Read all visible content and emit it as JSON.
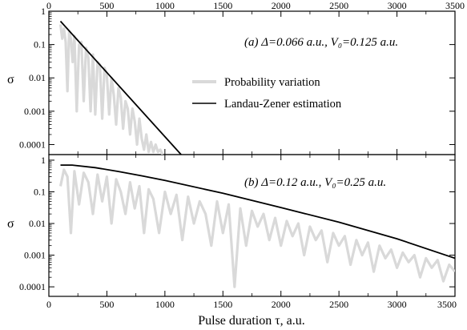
{
  "chart_data": [
    {
      "type": "line",
      "panel": "a",
      "annotation": "(a) Δ=0.066 a.u., V₀=0.125 a.u.",
      "ylabel": "σ",
      "xlabel": "",
      "xlim": [
        0,
        3500
      ],
      "ylim": [
        5e-05,
        1
      ],
      "yscale": "log",
      "x_ticks": [
        0,
        500,
        1000,
        1500,
        2000,
        2500,
        3000,
        3500
      ],
      "x_tick_labels_top": [
        "0",
        "500",
        "1000",
        "1500",
        "2000",
        "2500",
        "3000",
        "3500"
      ],
      "y_ticks": [
        0.0001,
        0.001,
        0.01,
        0.1,
        1
      ],
      "y_tick_labels": [
        "0.0001",
        "0.001",
        "0.01",
        "0.1",
        "1"
      ],
      "legend_position": "center-right",
      "series": [
        {
          "name": "Probability variation",
          "color": "#d9d9d9",
          "x": [
            100,
            115,
            130,
            145,
            160,
            175,
            190,
            205,
            220,
            240,
            260,
            280,
            300,
            320,
            340,
            360,
            380,
            400,
            420,
            440,
            460,
            480,
            500,
            520,
            540,
            560,
            580,
            600,
            620,
            640,
            660,
            680,
            700,
            720,
            740,
            760,
            780,
            800,
            820,
            840,
            860,
            880,
            900,
            920,
            940,
            960,
            980
          ],
          "y": [
            0.4,
            0.15,
            0.3,
            0.12,
            0.004,
            0.25,
            0.15,
            0.03,
            0.18,
            0.001,
            0.1,
            0.12,
            0.002,
            0.08,
            0.04,
            0.001,
            0.05,
            0.0008,
            0.03,
            0.025,
            0.0006,
            0.02,
            0.012,
            0.0008,
            0.01,
            0.003,
            0.0004,
            0.005,
            0.0025,
            0.0003,
            0.002,
            0.0012,
            0.0002,
            0.0012,
            0.0005,
            0.0001,
            0.0006,
            0.00015,
            7e-05,
            0.0002,
            6e-05,
            0.00012,
            6e-05,
            0.0001,
            6e-05,
            7e-05,
            5e-05
          ]
        },
        {
          "name": "Landau-Zener estimation",
          "color": "#000000",
          "x": [
            100,
            1140
          ],
          "y": [
            0.5,
            5e-05
          ]
        }
      ]
    },
    {
      "type": "line",
      "panel": "b",
      "annotation": "(b) Δ=0.12 a.u., V₀=0.25 a.u.",
      "ylabel": "σ",
      "xlabel": "Pulse duration τ, a.u.",
      "xlim": [
        0,
        3500
      ],
      "ylim": [
        5e-05,
        1.5
      ],
      "yscale": "log",
      "x_ticks": [
        0,
        500,
        1000,
        1500,
        2000,
        2500,
        3000,
        3500
      ],
      "x_tick_labels": [
        "0",
        "500",
        "1000",
        "1500",
        "2000",
        "2500",
        "3000",
        "3500"
      ],
      "y_ticks": [
        0.0001,
        0.001,
        0.01,
        0.1,
        1
      ],
      "y_tick_labels": [
        "0.0001",
        "0.001",
        "0.01",
        "0.1",
        "1"
      ],
      "series": [
        {
          "name": "Probability variation",
          "color": "#d9d9d9",
          "x": [
            100,
            130,
            160,
            190,
            220,
            260,
            300,
            340,
            380,
            420,
            460,
            500,
            540,
            580,
            620,
            660,
            700,
            740,
            780,
            820,
            860,
            900,
            950,
            1000,
            1050,
            1100,
            1150,
            1200,
            1250,
            1300,
            1350,
            1400,
            1450,
            1500,
            1550,
            1600,
            1650,
            1700,
            1750,
            1800,
            1850,
            1900,
            1950,
            2000,
            2050,
            2100,
            2150,
            2200,
            2250,
            2300,
            2350,
            2400,
            2450,
            2500,
            2550,
            2600,
            2650,
            2700,
            2750,
            2800,
            2850,
            2900,
            2950,
            3000,
            3050,
            3100,
            3150,
            3200,
            3250,
            3300,
            3350,
            3400,
            3450,
            3500
          ],
          "y": [
            0.15,
            0.5,
            0.3,
            0.005,
            0.45,
            0.04,
            0.4,
            0.2,
            0.02,
            0.35,
            0.05,
            0.3,
            0.01,
            0.25,
            0.1,
            0.02,
            0.2,
            0.03,
            0.15,
            0.005,
            0.12,
            0.06,
            0.005,
            0.1,
            0.02,
            0.08,
            0.003,
            0.07,
            0.01,
            0.05,
            0.02,
            0.002,
            0.05,
            0.005,
            0.04,
            0.0001,
            0.03,
            0.002,
            0.025,
            0.008,
            0.02,
            0.003,
            0.015,
            0.002,
            0.012,
            0.004,
            0.01,
            0.001,
            0.008,
            0.003,
            0.006,
            0.0006,
            0.005,
            0.002,
            0.004,
            0.0005,
            0.003,
            0.001,
            0.0025,
            0.0003,
            0.002,
            0.0008,
            0.0015,
            0.0004,
            0.0012,
            0.0006,
            0.001,
            0.0002,
            0.0008,
            0.0004,
            0.0007,
            0.00015,
            0.0005,
            0.0003
          ]
        },
        {
          "name": "Landau-Zener estimation",
          "color": "#000000",
          "x": [
            100,
            200,
            400,
            600,
            800,
            1000,
            1500,
            2000,
            2500,
            3000,
            3500
          ],
          "y": [
            0.7,
            0.7,
            0.58,
            0.44,
            0.32,
            0.23,
            0.09,
            0.032,
            0.011,
            0.0033,
            0.0008
          ]
        }
      ]
    }
  ]
}
